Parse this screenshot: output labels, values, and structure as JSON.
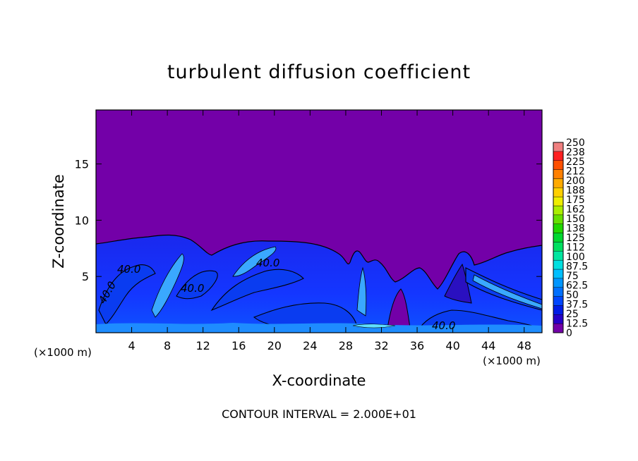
{
  "chart_data": {
    "type": "heatmap",
    "title": "turbulent diffusion coefficient",
    "xlabel": "X-coordinate",
    "ylabel": "Z-coordinate",
    "x_unit_label": "(×1000 m)",
    "z_unit_label": "(×1000 m)",
    "x_ticks": [
      4,
      8,
      12,
      16,
      20,
      24,
      28,
      32,
      36,
      40,
      44,
      48
    ],
    "y_ticks": [
      5,
      10,
      15
    ],
    "xlim": [
      0,
      50
    ],
    "ylim": [
      0,
      19.8
    ],
    "colorbar_levels": [
      "0",
      "12.5",
      "25",
      "37.5",
      "50",
      "62.5",
      "75",
      "87.5",
      "100",
      "112",
      "125",
      "138",
      "150",
      "162",
      "175",
      "188",
      "200",
      "212",
      "225",
      "238",
      "250"
    ],
    "colorbar_colors": [
      "#7300a8",
      "#2600c8",
      "#001ce6",
      "#0046ff",
      "#0070ff",
      "#0096ff",
      "#00bfff",
      "#00dfe0",
      "#00e6a0",
      "#00e060",
      "#00d830",
      "#20d800",
      "#66e000",
      "#aaee00",
      "#eeee00",
      "#ffd000",
      "#ffaa00",
      "#ff8000",
      "#ff5000",
      "#ff2020",
      "#f08080"
    ],
    "contour_labels": [
      "40.0",
      "40.0",
      "40.0",
      "40.0",
      "40.0"
    ],
    "contour_interval_text": "CONTOUR INTERVAL = 2.000E+01",
    "background_value": 0,
    "turbulent_layer_top_approx_km": 8
  }
}
